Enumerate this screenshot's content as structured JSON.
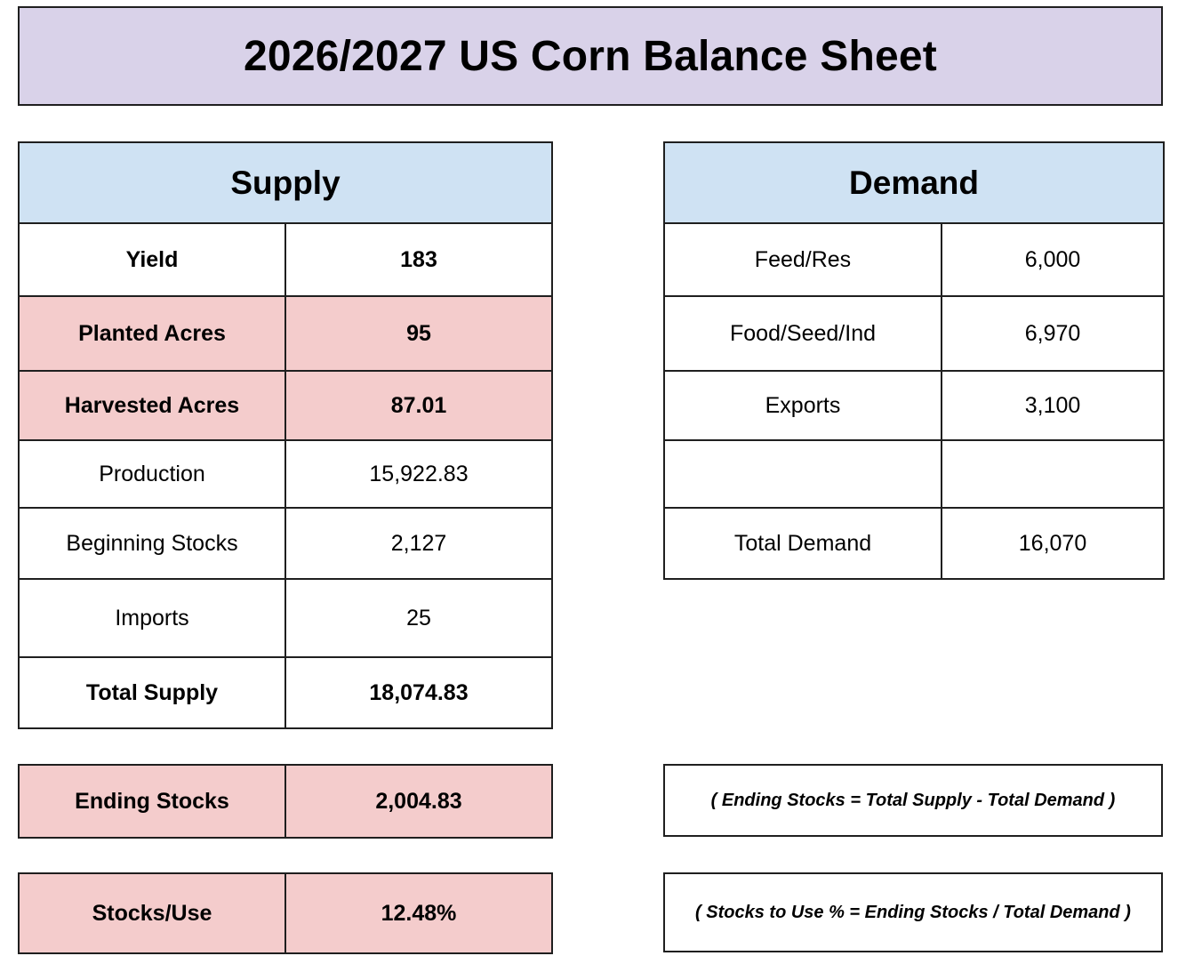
{
  "title": "2026/2027 US Corn Balance Sheet",
  "colors": {
    "title_bg": "#d9d2e9",
    "header_bg": "#cfe2f3",
    "highlight_bg": "#f4cccc",
    "border": "#1f1f1f"
  },
  "supply": {
    "header": "Supply",
    "rows": [
      {
        "label": "Yield",
        "value": "183",
        "bold": true,
        "highlight": false
      },
      {
        "label": "Planted Acres",
        "value": "95",
        "bold": true,
        "highlight": true
      },
      {
        "label": "Harvested Acres",
        "value": "87.01",
        "bold": true,
        "highlight": true
      },
      {
        "label": "Production",
        "value": "15,922.83",
        "bold": false,
        "highlight": false
      },
      {
        "label": "Beginning Stocks",
        "value": "2,127",
        "bold": false,
        "highlight": false
      },
      {
        "label": "Imports",
        "value": "25",
        "bold": false,
        "highlight": false
      },
      {
        "label": "Total Supply",
        "value": "18,074.83",
        "bold": true,
        "highlight": false
      }
    ]
  },
  "demand": {
    "header": "Demand",
    "rows": [
      {
        "label": "Feed/Res",
        "value": "6,000"
      },
      {
        "label": "Food/Seed/Ind",
        "value": "6,970"
      },
      {
        "label": "Exports",
        "value": "3,100"
      },
      {
        "label": "",
        "value": ""
      },
      {
        "label": "Total Demand",
        "value": "16,070"
      }
    ]
  },
  "ending_stocks": {
    "label": "Ending Stocks",
    "value": "2,004.83"
  },
  "stocks_use": {
    "label": "Stocks/Use",
    "value": "12.48%"
  },
  "notes": {
    "ending_stocks_formula": "( Ending Stocks = Total Supply - Total Demand )",
    "stocks_use_formula": "( Stocks to Use % = Ending Stocks / Total Demand )"
  }
}
